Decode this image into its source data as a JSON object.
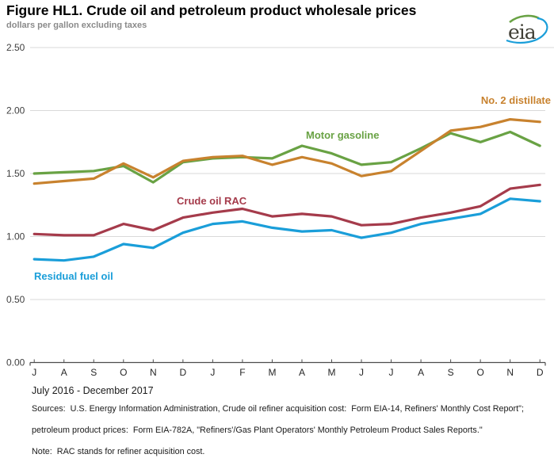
{
  "header": {
    "title": "Figure HL1. Crude oil and petroleum product wholesale prices",
    "subtitle": "dollars per gallon excluding taxes",
    "logo_text": "eia"
  },
  "chart_data": {
    "type": "line",
    "title": "Figure HL1. Crude oil and petroleum product wholesale prices",
    "ylabel": "dollars per gallon excluding taxes",
    "ylim": [
      0,
      2.5
    ],
    "grid": true,
    "legend": "inline-labels",
    "y_tick_labels": [
      "0.00",
      "0.50",
      "1.00",
      "1.50",
      "2.00",
      "2.50"
    ],
    "y_tick_values": [
      0,
      0.5,
      1.0,
      1.5,
      2.0,
      2.5
    ],
    "x_tick_labels": [
      "J",
      "A",
      "S",
      "O",
      "N",
      "D",
      "J",
      "F",
      "M",
      "A",
      "M",
      "J",
      "J",
      "A",
      "S",
      "O",
      "N",
      "D"
    ],
    "x_period": "July 2016 - December 2017",
    "series": [
      {
        "name": "Motor gasoline",
        "color": "#69a244",
        "values": [
          1.5,
          1.51,
          1.52,
          1.56,
          1.43,
          1.59,
          1.62,
          1.63,
          1.62,
          1.72,
          1.66,
          1.57,
          1.59,
          1.7,
          1.82,
          1.75,
          1.83,
          1.72
        ]
      },
      {
        "name": "No. 2 distillate",
        "color": "#c8822e",
        "values": [
          1.42,
          1.44,
          1.46,
          1.58,
          1.47,
          1.6,
          1.63,
          1.64,
          1.57,
          1.63,
          1.58,
          1.48,
          1.52,
          1.68,
          1.84,
          1.87,
          1.93,
          1.91
        ]
      },
      {
        "name": "Crude oil RAC",
        "color": "#a53b4b",
        "values": [
          1.02,
          1.01,
          1.01,
          1.1,
          1.05,
          1.15,
          1.19,
          1.22,
          1.16,
          1.18,
          1.16,
          1.09,
          1.1,
          1.15,
          1.19,
          1.24,
          1.38,
          1.41
        ]
      },
      {
        "name": "Residual fuel oil",
        "color": "#1a9ed9",
        "values": [
          0.82,
          0.81,
          0.84,
          0.94,
          0.91,
          1.03,
          1.1,
          1.12,
          1.07,
          1.04,
          1.05,
          0.99,
          1.03,
          1.1,
          1.14,
          1.18,
          1.3,
          1.28
        ]
      }
    ]
  },
  "footer": {
    "period_label": "July 2016 - December 2017",
    "sources_line1": "Sources:  U.S. Energy Information Administration, Crude oil refiner acquisition cost:  Form EIA-14, Refiners' Monthly Cost Report\";",
    "sources_line2": "petroleum product prices:  Form EIA-782A, \"Refiners'/Gas Plant Operators' Monthly Petroleum Product Sales Reports.\"",
    "note_line": "Note:  RAC stands for refiner acquisition cost."
  }
}
